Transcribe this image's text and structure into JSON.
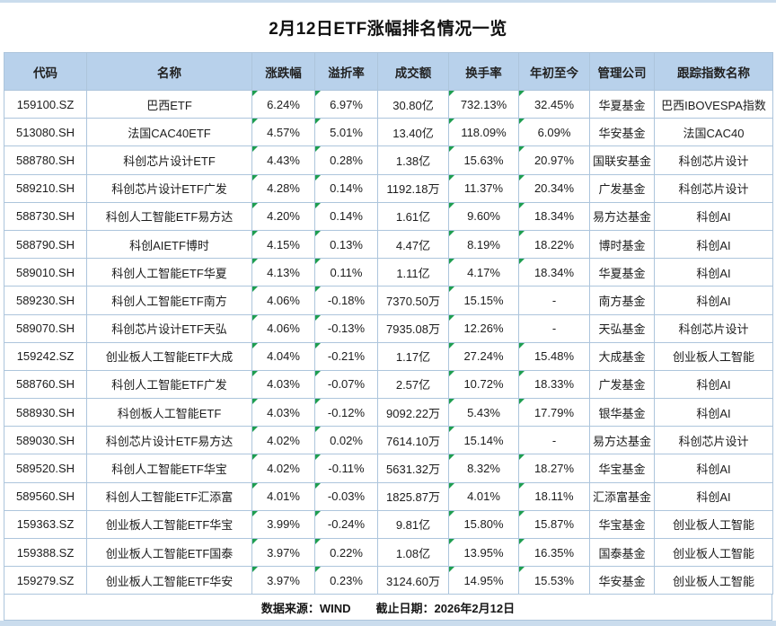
{
  "title": "2月12日ETF涨幅排名情况一览",
  "table": {
    "columns": [
      "代码",
      "名称",
      "涨跌幅",
      "溢折率",
      "成交额",
      "换手率",
      "年初至今",
      "管理公司",
      "跟踪指数名称"
    ],
    "flag_columns": [
      2,
      3,
      5,
      6
    ],
    "flag_icon": "excel-green-corner-triangle",
    "rows": [
      [
        "159100.SZ",
        "巴西ETF",
        "6.24%",
        "6.97%",
        "30.80亿",
        "732.13%",
        "32.45%",
        "华夏基金",
        "巴西IBOVESPA指数"
      ],
      [
        "513080.SH",
        "法国CAC40ETF",
        "4.57%",
        "5.01%",
        "13.40亿",
        "118.09%",
        "6.09%",
        "华安基金",
        "法国CAC40"
      ],
      [
        "588780.SH",
        "科创芯片设计ETF",
        "4.43%",
        "0.28%",
        "1.38亿",
        "15.63%",
        "20.97%",
        "国联安基金",
        "科创芯片设计"
      ],
      [
        "589210.SH",
        "科创芯片设计ETF广发",
        "4.28%",
        "0.14%",
        "1192.18万",
        "11.37%",
        "20.34%",
        "广发基金",
        "科创芯片设计"
      ],
      [
        "588730.SH",
        "科创人工智能ETF易方达",
        "4.20%",
        "0.14%",
        "1.61亿",
        "9.60%",
        "18.34%",
        "易方达基金",
        "科创AI"
      ],
      [
        "588790.SH",
        "科创AIETF博时",
        "4.15%",
        "0.13%",
        "4.47亿",
        "8.19%",
        "18.22%",
        "博时基金",
        "科创AI"
      ],
      [
        "589010.SH",
        "科创人工智能ETF华夏",
        "4.13%",
        "0.11%",
        "1.11亿",
        "4.17%",
        "18.34%",
        "华夏基金",
        "科创AI"
      ],
      [
        "589230.SH",
        "科创人工智能ETF南方",
        "4.06%",
        "-0.18%",
        "7370.50万",
        "15.15%",
        "-",
        "南方基金",
        "科创AI"
      ],
      [
        "589070.SH",
        "科创芯片设计ETF天弘",
        "4.06%",
        "-0.13%",
        "7935.08万",
        "12.26%",
        "-",
        "天弘基金",
        "科创芯片设计"
      ],
      [
        "159242.SZ",
        "创业板人工智能ETF大成",
        "4.04%",
        "-0.21%",
        "1.17亿",
        "27.24%",
        "15.48%",
        "大成基金",
        "创业板人工智能"
      ],
      [
        "588760.SH",
        "科创人工智能ETF广发",
        "4.03%",
        "-0.07%",
        "2.57亿",
        "10.72%",
        "18.33%",
        "广发基金",
        "科创AI"
      ],
      [
        "588930.SH",
        "科创板人工智能ETF",
        "4.03%",
        "-0.12%",
        "9092.22万",
        "5.43%",
        "17.79%",
        "银华基金",
        "科创AI"
      ],
      [
        "589030.SH",
        "科创芯片设计ETF易方达",
        "4.02%",
        "0.02%",
        "7614.10万",
        "15.14%",
        "-",
        "易方达基金",
        "科创芯片设计"
      ],
      [
        "589520.SH",
        "科创人工智能ETF华宝",
        "4.02%",
        "-0.11%",
        "5631.32万",
        "8.32%",
        "18.27%",
        "华宝基金",
        "科创AI"
      ],
      [
        "589560.SH",
        "科创人工智能ETF汇添富",
        "4.01%",
        "-0.03%",
        "1825.87万",
        "4.01%",
        "18.11%",
        "汇添富基金",
        "科创AI"
      ],
      [
        "159363.SZ",
        "创业板人工智能ETF华宝",
        "3.99%",
        "-0.24%",
        "9.81亿",
        "15.80%",
        "15.87%",
        "华宝基金",
        "创业板人工智能"
      ],
      [
        "159388.SZ",
        "创业板人工智能ETF国泰",
        "3.97%",
        "0.22%",
        "1.08亿",
        "13.95%",
        "16.35%",
        "国泰基金",
        "创业板人工智能"
      ],
      [
        "159279.SZ",
        "创业板人工智能ETF华安",
        "3.97%",
        "0.23%",
        "3124.60万",
        "14.95%",
        "15.53%",
        "华安基金",
        "创业板人工智能"
      ]
    ]
  },
  "footer": {
    "source": "数据来源：WIND",
    "date": "截止日期：2026年2月12日"
  },
  "colors": {
    "header_bg": "#b8d1eb",
    "border": "#adc5dc",
    "strip": "#cadced",
    "flag_green": "#1e9e50",
    "text": "#1c1c1c"
  }
}
